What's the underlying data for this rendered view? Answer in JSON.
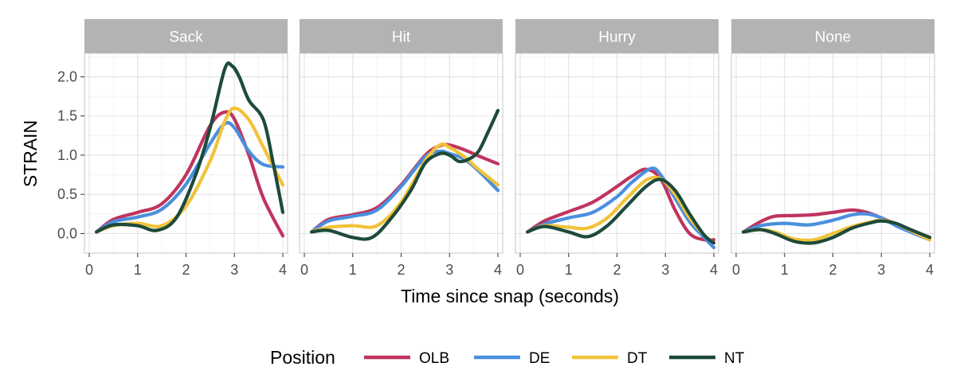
{
  "chart_data": {
    "type": "line",
    "facet_labels": [
      "Sack",
      "Hit",
      "Hurry",
      "None"
    ],
    "xlabel": "Time since snap (seconds)",
    "ylabel": "STRAIN",
    "xlim": [
      0,
      4
    ],
    "ylim": [
      -0.25,
      2.3
    ],
    "x_ticks": [
      0,
      1,
      2,
      3,
      4
    ],
    "y_ticks": [
      0.0,
      0.5,
      1.0,
      1.5,
      2.0
    ],
    "y_tick_labels": [
      "0.0",
      "0.5",
      "1.0",
      "1.5",
      "2.0"
    ],
    "grid": true,
    "legend": {
      "title": "Position",
      "placement": "bottom",
      "entries": [
        {
          "name": "OLB",
          "color": "#c0345e"
        },
        {
          "name": "DE",
          "color": "#4a8fde"
        },
        {
          "name": "DT",
          "color": "#f2c238"
        },
        {
          "name": "NT",
          "color": "#1d4a3b"
        }
      ]
    },
    "facets": [
      {
        "label": "Sack",
        "series": [
          {
            "name": "OLB",
            "x": [
              0.15,
              0.5,
              1,
              1.5,
              2,
              2.5,
              2.8,
              3,
              3.3,
              3.6,
              4
            ],
            "y": [
              0.02,
              0.18,
              0.27,
              0.38,
              0.75,
              1.38,
              1.55,
              1.46,
              1.0,
              0.45,
              -0.03
            ]
          },
          {
            "name": "DE",
            "x": [
              0.15,
              0.5,
              1,
              1.5,
              2,
              2.5,
              2.8,
              3,
              3.3,
              3.6,
              4
            ],
            "y": [
              0.02,
              0.15,
              0.21,
              0.31,
              0.63,
              1.15,
              1.4,
              1.35,
              1.05,
              0.88,
              0.85
            ]
          },
          {
            "name": "DT",
            "x": [
              0.15,
              0.5,
              1,
              1.5,
              2,
              2.5,
              2.8,
              3,
              3.3,
              3.6,
              4
            ],
            "y": [
              0.02,
              0.1,
              0.13,
              0.1,
              0.35,
              0.93,
              1.43,
              1.6,
              1.45,
              1.1,
              0.62
            ]
          },
          {
            "name": "NT",
            "x": [
              0.15,
              0.5,
              1,
              1.4,
              1.8,
              2.2,
              2.5,
              2.8,
              2.95,
              3.1,
              3.3,
              3.6,
              3.8,
              4
            ],
            "y": [
              0.02,
              0.11,
              0.1,
              0.04,
              0.2,
              0.75,
              1.35,
              2.1,
              2.14,
              2.0,
              1.7,
              1.45,
              0.9,
              0.27
            ]
          }
        ]
      },
      {
        "label": "Hit",
        "series": [
          {
            "name": "OLB",
            "x": [
              0.15,
              0.5,
              1,
              1.5,
              2,
              2.5,
              2.8,
              3,
              3.3,
              3.6,
              4
            ],
            "y": [
              0.02,
              0.18,
              0.24,
              0.33,
              0.62,
              1.0,
              1.12,
              1.13,
              1.07,
              0.99,
              0.89
            ]
          },
          {
            "name": "DE",
            "x": [
              0.15,
              0.5,
              1,
              1.5,
              2,
              2.5,
              2.8,
              3,
              3.3,
              3.6,
              4
            ],
            "y": [
              0.02,
              0.16,
              0.22,
              0.3,
              0.6,
              0.98,
              1.05,
              1.02,
              0.95,
              0.8,
              0.55
            ]
          },
          {
            "name": "DT",
            "x": [
              0.15,
              0.5,
              1,
              1.5,
              2,
              2.5,
              2.8,
              3,
              3.3,
              3.6,
              4
            ],
            "y": [
              0.02,
              0.08,
              0.1,
              0.1,
              0.4,
              0.93,
              1.13,
              1.1,
              0.98,
              0.82,
              0.62
            ]
          },
          {
            "name": "NT",
            "x": [
              0.15,
              0.5,
              1,
              1.4,
              1.8,
              2.2,
              2.5,
              2.8,
              3,
              3.2,
              3.4,
              3.6,
              3.8,
              4
            ],
            "y": [
              0.02,
              0.04,
              -0.05,
              -0.05,
              0.2,
              0.55,
              0.9,
              1.02,
              1.0,
              0.92,
              0.95,
              1.05,
              1.3,
              1.57
            ]
          }
        ]
      },
      {
        "label": "Hurry",
        "series": [
          {
            "name": "OLB",
            "x": [
              0.15,
              0.5,
              1,
              1.5,
              2,
              2.3,
              2.6,
              2.9,
              3.2,
              3.5,
              3.8,
              4
            ],
            "y": [
              0.02,
              0.16,
              0.28,
              0.4,
              0.6,
              0.73,
              0.82,
              0.7,
              0.3,
              0.0,
              -0.08,
              -0.08
            ]
          },
          {
            "name": "DE",
            "x": [
              0.15,
              0.5,
              1,
              1.5,
              2,
              2.3,
              2.7,
              2.9,
              3.2,
              3.5,
              3.8,
              4
            ],
            "y": [
              0.02,
              0.12,
              0.2,
              0.27,
              0.47,
              0.65,
              0.83,
              0.75,
              0.45,
              0.15,
              -0.05,
              -0.18
            ]
          },
          {
            "name": "DT",
            "x": [
              0.15,
              0.5,
              1,
              1.4,
              1.8,
              2.2,
              2.6,
              2.9,
              3.2,
              3.5,
              3.8,
              4
            ],
            "y": [
              0.02,
              0.1,
              0.08,
              0.07,
              0.2,
              0.45,
              0.68,
              0.7,
              0.5,
              0.2,
              -0.02,
              -0.12
            ]
          },
          {
            "name": "NT",
            "x": [
              0.15,
              0.5,
              1,
              1.4,
              1.8,
              2.2,
              2.6,
              2.9,
              3.2,
              3.5,
              3.8,
              4
            ],
            "y": [
              0.02,
              0.09,
              0.02,
              -0.04,
              0.1,
              0.35,
              0.6,
              0.69,
              0.55,
              0.25,
              -0.02,
              -0.12
            ]
          }
        ]
      },
      {
        "label": "None",
        "series": [
          {
            "name": "OLB",
            "x": [
              0.15,
              0.5,
              0.8,
              1.2,
              1.6,
              2,
              2.4,
              2.7,
              3,
              3.3,
              3.6,
              4
            ],
            "y": [
              0.02,
              0.15,
              0.22,
              0.23,
              0.24,
              0.27,
              0.3,
              0.27,
              0.2,
              0.12,
              0.05,
              -0.05
            ]
          },
          {
            "name": "DE",
            "x": [
              0.15,
              0.5,
              1,
              1.5,
              2,
              2.4,
              2.7,
              3,
              3.3,
              3.6,
              4
            ],
            "y": [
              0.02,
              0.1,
              0.13,
              0.11,
              0.17,
              0.24,
              0.25,
              0.2,
              0.1,
              0.02,
              -0.08
            ]
          },
          {
            "name": "DT",
            "x": [
              0.15,
              0.5,
              0.8,
              1.2,
              1.6,
              2,
              2.4,
              2.8,
              3,
              3.3,
              3.6,
              4
            ],
            "y": [
              0.02,
              0.05,
              0.02,
              -0.07,
              -0.08,
              0.0,
              0.09,
              0.15,
              0.17,
              0.13,
              0.04,
              -0.08
            ]
          },
          {
            "name": "NT",
            "x": [
              0.15,
              0.5,
              0.8,
              1.2,
              1.6,
              2,
              2.4,
              2.8,
              3,
              3.3,
              3.6,
              4
            ],
            "y": [
              0.02,
              0.05,
              0.0,
              -0.1,
              -0.12,
              -0.05,
              0.07,
              0.14,
              0.16,
              0.13,
              0.05,
              -0.05
            ]
          }
        ]
      }
    ]
  }
}
